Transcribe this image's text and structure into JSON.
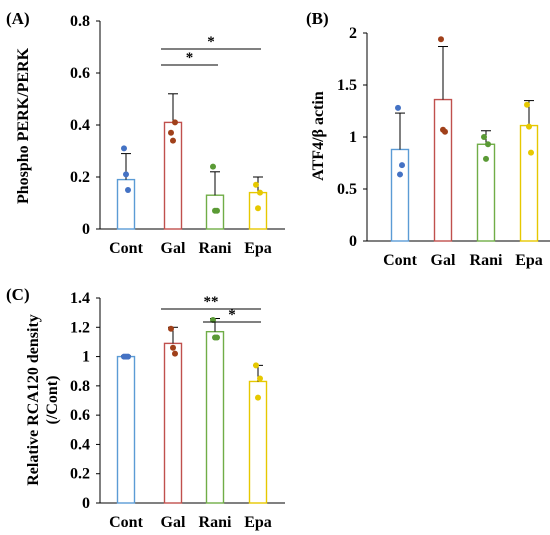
{
  "figure": {
    "colors": {
      "Cont": "#5b9bd5",
      "Gal": "#c0504d",
      "Rani": "#70ad47",
      "Epa": "#e6c800",
      "Cont_dot": "#4472c4",
      "Gal_dot": "#a0401a",
      "Rani_dot": "#5a9a35",
      "Epa_dot": "#e6c800"
    }
  },
  "chart_data": [
    {
      "panel": "(A)",
      "type": "bar",
      "categories": [
        "Cont",
        "Gal",
        "Rani",
        "Epa"
      ],
      "values": [
        0.19,
        0.41,
        0.13,
        0.14
      ],
      "errors": [
        0.1,
        0.11,
        0.09,
        0.06
      ],
      "points": [
        [
          0.31,
          0.21,
          0.15
        ],
        [
          0.37,
          0.34,
          0.41
        ],
        [
          0.24,
          0.07,
          0.07
        ],
        [
          0.17,
          0.08,
          0.14
        ]
      ],
      "title": "",
      "xlabel": "",
      "ylabel": "Phospho PERK/PERK",
      "ylim": [
        0,
        0.8
      ],
      "yticks": [
        "0",
        "0.2",
        "0.4",
        "0.6",
        "0.8"
      ],
      "significance": [
        {
          "from": "Gal",
          "to": "Epa",
          "label": "*"
        },
        {
          "from": "Gal",
          "to": "Rani",
          "label": "*"
        }
      ],
      "grid": false
    },
    {
      "panel": "(B)",
      "type": "bar",
      "categories": [
        "Cont",
        "Gal",
        "Rani",
        "Epa"
      ],
      "values": [
        0.88,
        1.36,
        0.93,
        1.11
      ],
      "errors": [
        0.35,
        0.51,
        0.13,
        0.24
      ],
      "points": [
        [
          1.28,
          0.64,
          0.73
        ],
        [
          1.94,
          1.07,
          1.05
        ],
        [
          1.0,
          0.79,
          0.93
        ],
        [
          1.31,
          1.1,
          0.85
        ]
      ],
      "title": "",
      "xlabel": "",
      "ylabel": "ATF4/β actin",
      "ylim": [
        0,
        2
      ],
      "yticks": [
        "0",
        "0.5",
        "1",
        "1.5",
        "2"
      ],
      "significance": [],
      "grid": false
    },
    {
      "panel": "(C)",
      "type": "bar",
      "categories": [
        "Cont",
        "Gal",
        "Rani",
        "Epa"
      ],
      "values": [
        1.0,
        1.09,
        1.17,
        0.83
      ],
      "errors": [
        0.005,
        0.11,
        0.09,
        0.11
      ],
      "points": [
        [
          1.0,
          1.0,
          1.0
        ],
        [
          1.19,
          1.06,
          1.02
        ],
        [
          1.25,
          1.13,
          1.13
        ],
        [
          0.94,
          0.72,
          0.85
        ]
      ],
      "title": "",
      "xlabel": "",
      "ylabel": "Relative RCA120 density (/Cont)",
      "ylabel_lines": [
        "Relative RCA120 density",
        "(/Cont)"
      ],
      "ylim": [
        0,
        1.4
      ],
      "yticks": [
        "0",
        "0.2",
        "0.4",
        "0.6",
        "0.8",
        "1",
        "1.2",
        "1.4"
      ],
      "significance": [
        {
          "from": "Gal",
          "to": "Epa",
          "label": "**"
        },
        {
          "from": "Rani",
          "to": "Epa",
          "label": "*"
        }
      ],
      "grid": false
    }
  ]
}
